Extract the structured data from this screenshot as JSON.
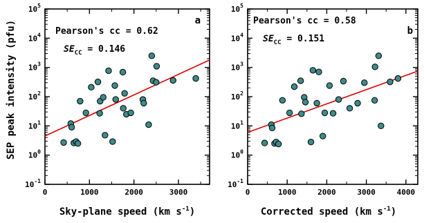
{
  "ylabel": "SEP peak intensity (pfu)",
  "chart_data": [
    {
      "type": "scatter",
      "panel_label": "a",
      "xlabel": "Sky-plane speed (km s",
      "xlabel_sup": "-1",
      "xlabel_end": ")",
      "xlim": [
        0,
        3700
      ],
      "ylim": [
        0.1,
        100000
      ],
      "ylog": true,
      "xticks": [
        0,
        1000,
        2000,
        3000
      ],
      "xtick_labels": [
        "0",
        "1000",
        "2000",
        "3000"
      ],
      "annotation_cc": "Pearson's cc = 0.62",
      "annotation_se_symbol": "SE",
      "annotation_se_sub": "CC",
      "annotation_se_value": " = 0.146",
      "marker_color": "#3f8a8a",
      "fit_color": "#e00000",
      "fit_line": {
        "x": [
          0,
          3700
        ],
        "y": [
          4.5,
          1800
        ]
      },
      "points": [
        {
          "x": 420,
          "y": 2.7
        },
        {
          "x": 580,
          "y": 12
        },
        {
          "x": 600,
          "y": 9
        },
        {
          "x": 650,
          "y": 2.6
        },
        {
          "x": 700,
          "y": 2.9
        },
        {
          "x": 740,
          "y": 2.5
        },
        {
          "x": 790,
          "y": 70
        },
        {
          "x": 920,
          "y": 28
        },
        {
          "x": 1040,
          "y": 210
        },
        {
          "x": 1190,
          "y": 320
        },
        {
          "x": 1230,
          "y": 27
        },
        {
          "x": 1240,
          "y": 70
        },
        {
          "x": 1310,
          "y": 95
        },
        {
          "x": 1350,
          "y": 4.8
        },
        {
          "x": 1430,
          "y": 770
        },
        {
          "x": 1520,
          "y": 2.9
        },
        {
          "x": 1570,
          "y": 240
        },
        {
          "x": 1590,
          "y": 80
        },
        {
          "x": 1750,
          "y": 690
        },
        {
          "x": 1760,
          "y": 40
        },
        {
          "x": 1790,
          "y": 130
        },
        {
          "x": 1830,
          "y": 25
        },
        {
          "x": 1930,
          "y": 28
        },
        {
          "x": 2200,
          "y": 80
        },
        {
          "x": 2220,
          "y": 60
        },
        {
          "x": 2330,
          "y": 11
        },
        {
          "x": 2400,
          "y": 2500
        },
        {
          "x": 2430,
          "y": 350
        },
        {
          "x": 2500,
          "y": 310
        },
        {
          "x": 2510,
          "y": 1100
        },
        {
          "x": 2880,
          "y": 360
        },
        {
          "x": 3390,
          "y": 420
        }
      ]
    },
    {
      "type": "scatter",
      "panel_label": "b",
      "xlabel": "Corrected speed (km s",
      "xlabel_sup": "-1",
      "xlabel_end": ")",
      "xlim": [
        0,
        4300
      ],
      "ylim": [
        0.1,
        100000
      ],
      "ylog": true,
      "xticks": [
        0,
        1000,
        2000,
        3000,
        4000
      ],
      "xtick_labels": [
        "0",
        "1000",
        "2000",
        "3000",
        "4000"
      ],
      "annotation_cc": "Pearson's cc = 0.58",
      "annotation_se_symbol": "SE",
      "annotation_se_sub": "CC",
      "annotation_se_value": " = 0.151",
      "marker_color": "#3f8a8a",
      "fit_color": "#e00000",
      "fit_line": {
        "x": [
          0,
          4300
        ],
        "y": [
          6,
          750
        ]
      },
      "points": [
        {
          "x": 430,
          "y": 2.6
        },
        {
          "x": 600,
          "y": 11
        },
        {
          "x": 620,
          "y": 8.5
        },
        {
          "x": 680,
          "y": 2.5
        },
        {
          "x": 720,
          "y": 2.8
        },
        {
          "x": 780,
          "y": 2.4
        },
        {
          "x": 880,
          "y": 75
        },
        {
          "x": 1060,
          "y": 28
        },
        {
          "x": 1180,
          "y": 220
        },
        {
          "x": 1340,
          "y": 350
        },
        {
          "x": 1360,
          "y": 26
        },
        {
          "x": 1430,
          "y": 95
        },
        {
          "x": 1460,
          "y": 65
        },
        {
          "x": 1600,
          "y": 2.8
        },
        {
          "x": 1650,
          "y": 800
        },
        {
          "x": 1750,
          "y": 60
        },
        {
          "x": 1800,
          "y": 700
        },
        {
          "x": 1900,
          "y": 4.5
        },
        {
          "x": 1950,
          "y": 28
        },
        {
          "x": 2070,
          "y": 240
        },
        {
          "x": 2160,
          "y": 27
        },
        {
          "x": 2300,
          "y": 80
        },
        {
          "x": 2420,
          "y": 340
        },
        {
          "x": 2580,
          "y": 40
        },
        {
          "x": 2780,
          "y": 60
        },
        {
          "x": 2950,
          "y": 300
        },
        {
          "x": 3220,
          "y": 1050
        },
        {
          "x": 3210,
          "y": 75
        },
        {
          "x": 3310,
          "y": 2500
        },
        {
          "x": 3370,
          "y": 10
        },
        {
          "x": 3600,
          "y": 320
        },
        {
          "x": 3800,
          "y": 420
        }
      ]
    }
  ]
}
